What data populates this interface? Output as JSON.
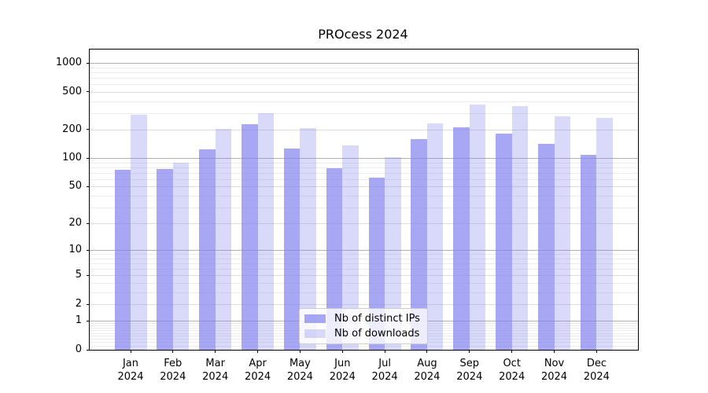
{
  "chart_data": {
    "type": "bar",
    "title": "PROcess 2024",
    "categories": [
      "Jan",
      "Feb",
      "Mar",
      "Apr",
      "May",
      "Jun",
      "Jul",
      "Aug",
      "Sep",
      "Oct",
      "Nov",
      "Dec"
    ],
    "category_year": "2024",
    "series": [
      {
        "name": "Nb of distinct IPs",
        "color": "rgba(130,130,240,0.7)",
        "values": [
          76,
          77,
          124,
          230,
          127,
          79,
          62,
          160,
          213,
          181,
          143,
          109
        ]
      },
      {
        "name": "Nb of downloads",
        "color": "rgba(130,130,240,0.3)",
        "values": [
          285,
          90,
          202,
          300,
          206,
          136,
          103,
          234,
          369,
          351,
          274,
          264
        ]
      }
    ],
    "xlabel": "",
    "ylabel": "",
    "yscale": "log10(1+v)",
    "ylim": [
      0,
      1385
    ],
    "yticks": [
      0,
      1,
      2,
      5,
      10,
      20,
      50,
      100,
      200,
      500,
      1000
    ],
    "grid": {
      "on": true,
      "major": [
        1,
        10,
        100,
        1000
      ],
      "labeled": [
        2,
        5,
        20,
        50,
        200,
        500
      ],
      "minor": [
        0.1,
        0.2,
        0.3,
        0.4,
        0.5,
        0.6,
        0.7,
        0.8,
        0.9,
        3,
        4,
        6,
        7,
        8,
        9,
        30,
        40,
        60,
        70,
        80,
        90,
        300,
        400,
        600,
        700,
        800,
        900
      ]
    },
    "legend_position": "lower-center-inside"
  }
}
